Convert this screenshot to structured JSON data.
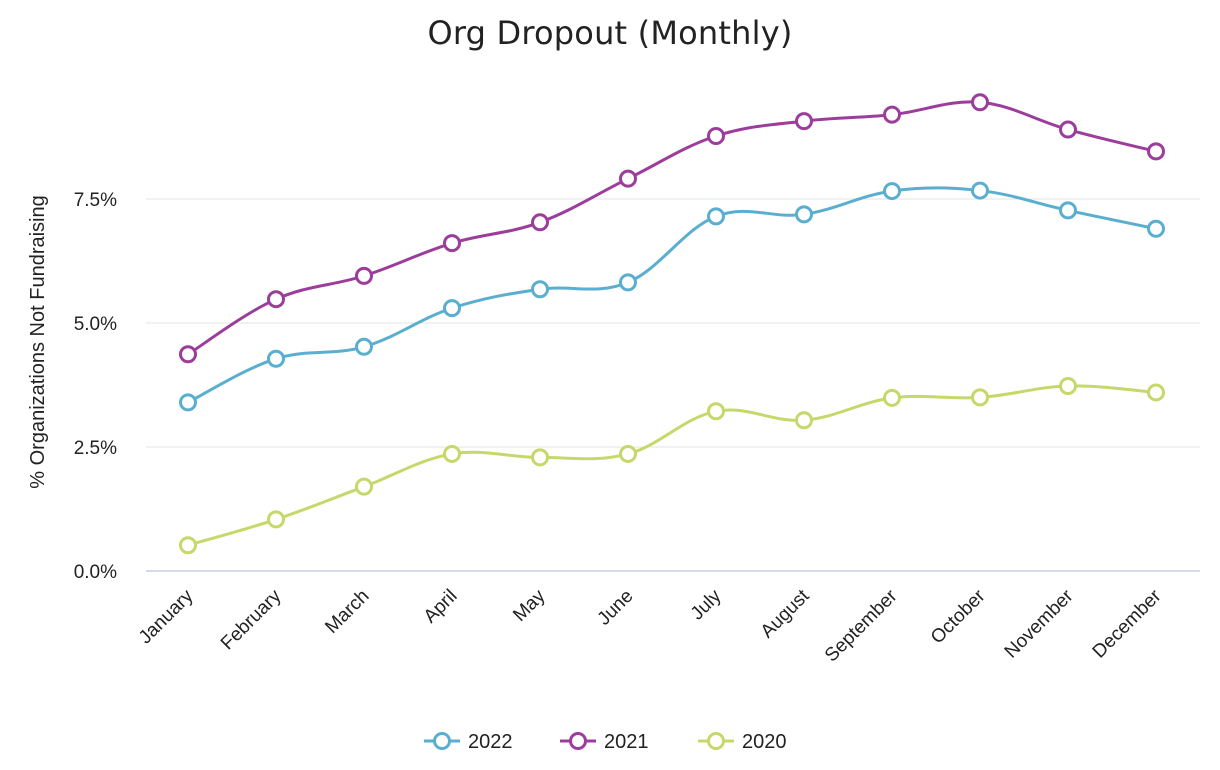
{
  "chart_data": {
    "type": "line",
    "title": "Org Dropout (Monthly)",
    "xlabel": "",
    "ylabel": "% Organizations Not Fundraising",
    "categories": [
      "January",
      "February",
      "March",
      "April",
      "May",
      "June",
      "July",
      "August",
      "September",
      "October",
      "November",
      "December"
    ],
    "yticks": [
      "0.0%",
      "2.5%",
      "5.0%",
      "7.5%"
    ],
    "ytick_values": [
      0,
      2.5,
      5,
      7.5
    ],
    "ylim": [
      0,
      10
    ],
    "grid": true,
    "legend_position": "bottom-center",
    "series": [
      {
        "name": "2022",
        "color": "#5aaed0",
        "values": [
          3.4,
          4.28,
          4.52,
          5.3,
          5.68,
          5.82,
          7.15,
          7.19,
          7.66,
          7.67,
          7.27,
          6.9
        ]
      },
      {
        "name": "2021",
        "color": "#9c3d9c",
        "values": [
          4.37,
          5.48,
          5.95,
          6.61,
          7.03,
          7.91,
          8.77,
          9.07,
          9.2,
          9.45,
          8.9,
          8.46
        ]
      },
      {
        "name": "2020",
        "color": "#c5d96a",
        "values": [
          0.52,
          1.04,
          1.7,
          2.36,
          2.29,
          2.36,
          3.22,
          3.04,
          3.49,
          3.5,
          3.73,
          3.6
        ]
      }
    ]
  }
}
